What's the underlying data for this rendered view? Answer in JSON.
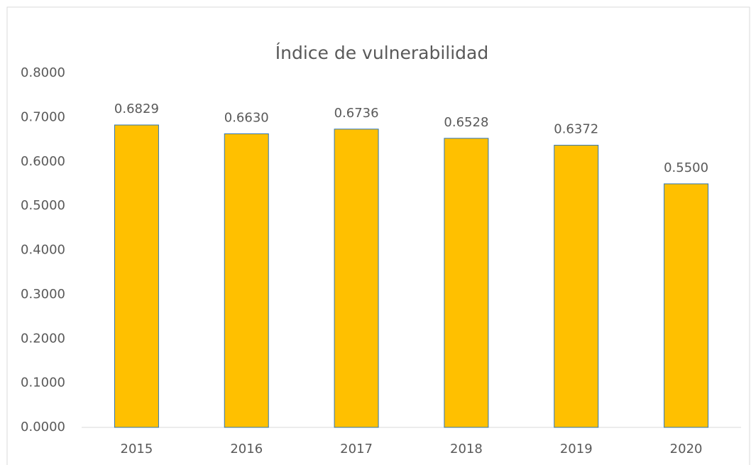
{
  "chart_data": {
    "type": "bar",
    "title": "Índice de vulnerabilidad",
    "categories": [
      "2015",
      "2016",
      "2017",
      "2018",
      "2019",
      "2020"
    ],
    "values": [
      0.6829,
      0.663,
      0.6736,
      0.6528,
      0.6372,
      0.55
    ],
    "value_labels": [
      "0.6829",
      "0.6630",
      "0.6736",
      "0.6528",
      "0.6372",
      "0.5500"
    ],
    "color": "#ffc000",
    "edge_color": "#2e75b6",
    "ylim": [
      0,
      0.8
    ],
    "yticks": [
      {
        "value": 0,
        "label": "0.0000"
      },
      {
        "value": 0.1,
        "label": "0.1000"
      },
      {
        "value": 0.2,
        "label": "0.2000"
      },
      {
        "value": 0.3,
        "label": "0.3000"
      },
      {
        "value": 0.4,
        "label": "0.4000"
      },
      {
        "value": 0.5,
        "label": "0.5000"
      },
      {
        "value": 0.6,
        "label": "0.6000"
      },
      {
        "value": 0.7,
        "label": "0.7000"
      },
      {
        "value": 0.8,
        "label": "0.8000"
      }
    ],
    "grid": false
  }
}
